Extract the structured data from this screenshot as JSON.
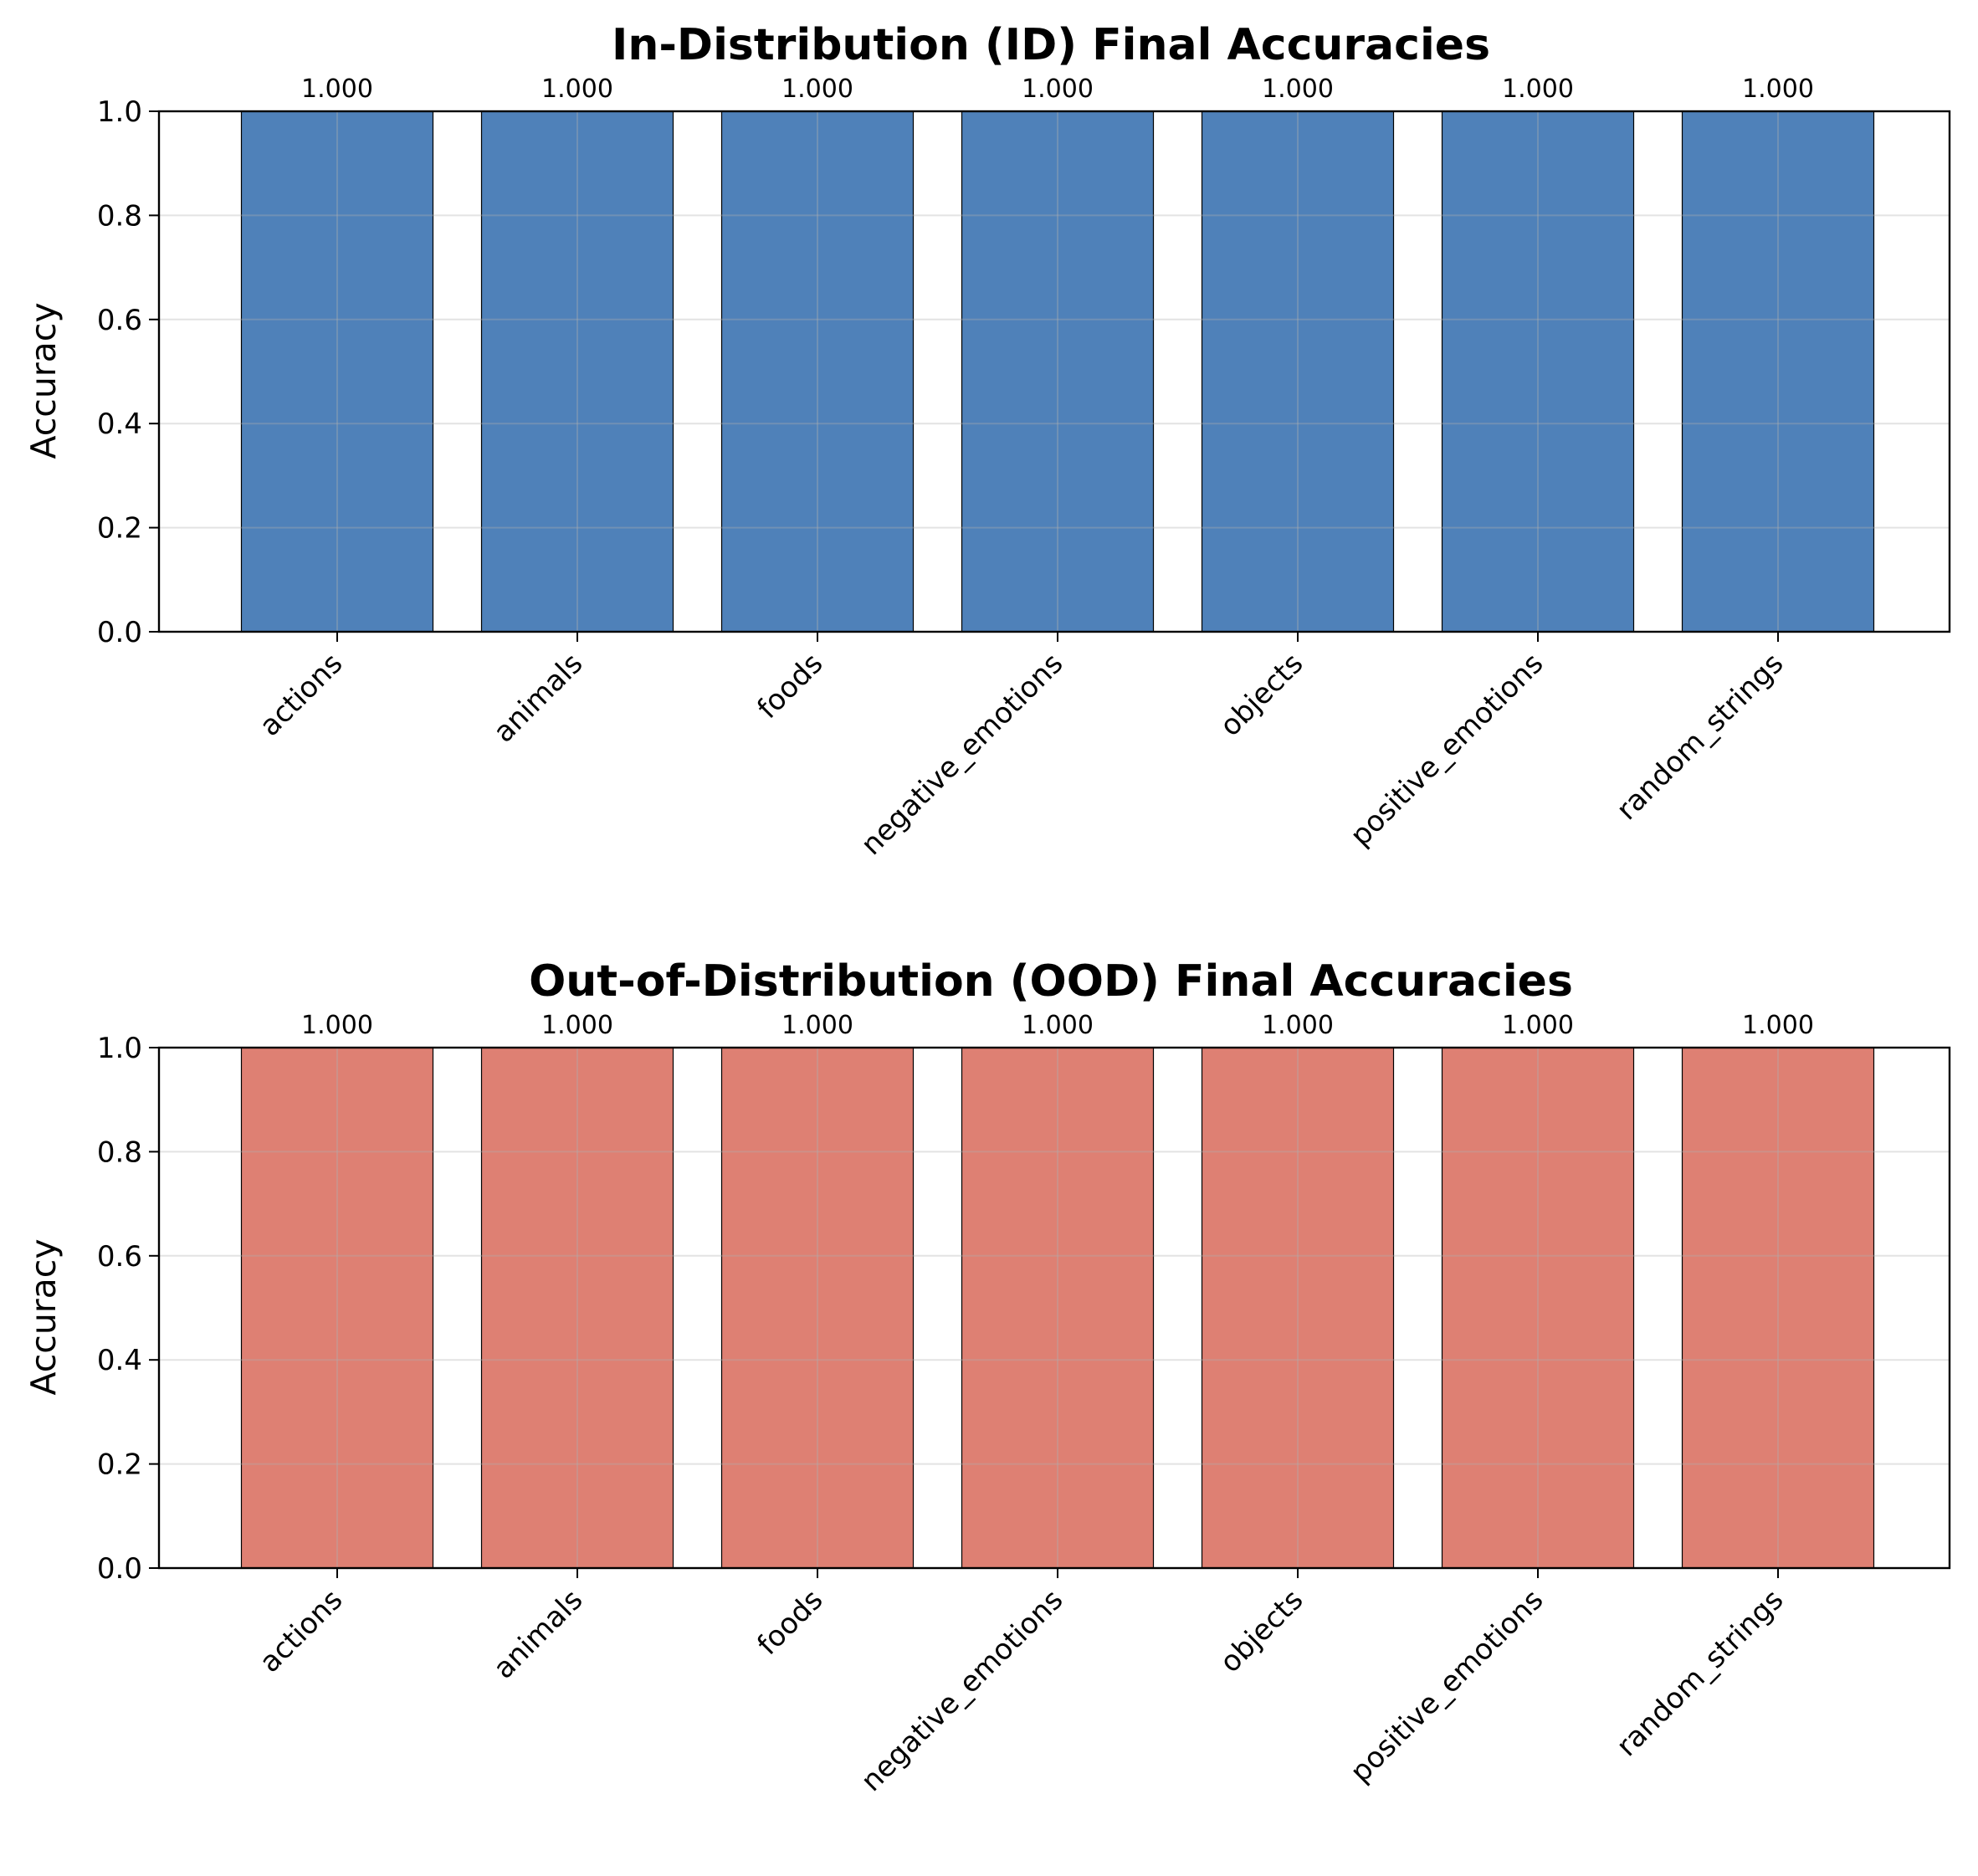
{
  "chart_data": [
    {
      "type": "bar",
      "title": "In-Distribution (ID) Final Accuracies",
      "xlabel": "",
      "ylabel": "Accuracy",
      "ylim": [
        0,
        1
      ],
      "yticks": [
        "0.0",
        "0.2",
        "0.4",
        "0.6",
        "0.8",
        "1.0"
      ],
      "categories": [
        "actions",
        "animals",
        "foods",
        "negative_emotions",
        "objects",
        "positive_emotions",
        "random_strings"
      ],
      "values": [
        1.0,
        1.0,
        1.0,
        1.0,
        1.0,
        1.0,
        1.0
      ],
      "data_labels": [
        "1.000",
        "1.000",
        "1.000",
        "1.000",
        "1.000",
        "1.000",
        "1.000"
      ],
      "bar_color": "#4f81b9",
      "grid": true
    },
    {
      "type": "bar",
      "title": "Out-of-Distribution (OOD) Final Accuracies",
      "xlabel": "",
      "ylabel": "Accuracy",
      "ylim": [
        0,
        1
      ],
      "yticks": [
        "0.0",
        "0.2",
        "0.4",
        "0.6",
        "0.8",
        "1.0"
      ],
      "categories": [
        "actions",
        "animals",
        "foods",
        "negative_emotions",
        "objects",
        "positive_emotions",
        "random_strings"
      ],
      "values": [
        1.0,
        1.0,
        1.0,
        1.0,
        1.0,
        1.0,
        1.0
      ],
      "data_labels": [
        "1.000",
        "1.000",
        "1.000",
        "1.000",
        "1.000",
        "1.000",
        "1.000"
      ],
      "bar_color": "#de8073",
      "grid": true
    }
  ]
}
